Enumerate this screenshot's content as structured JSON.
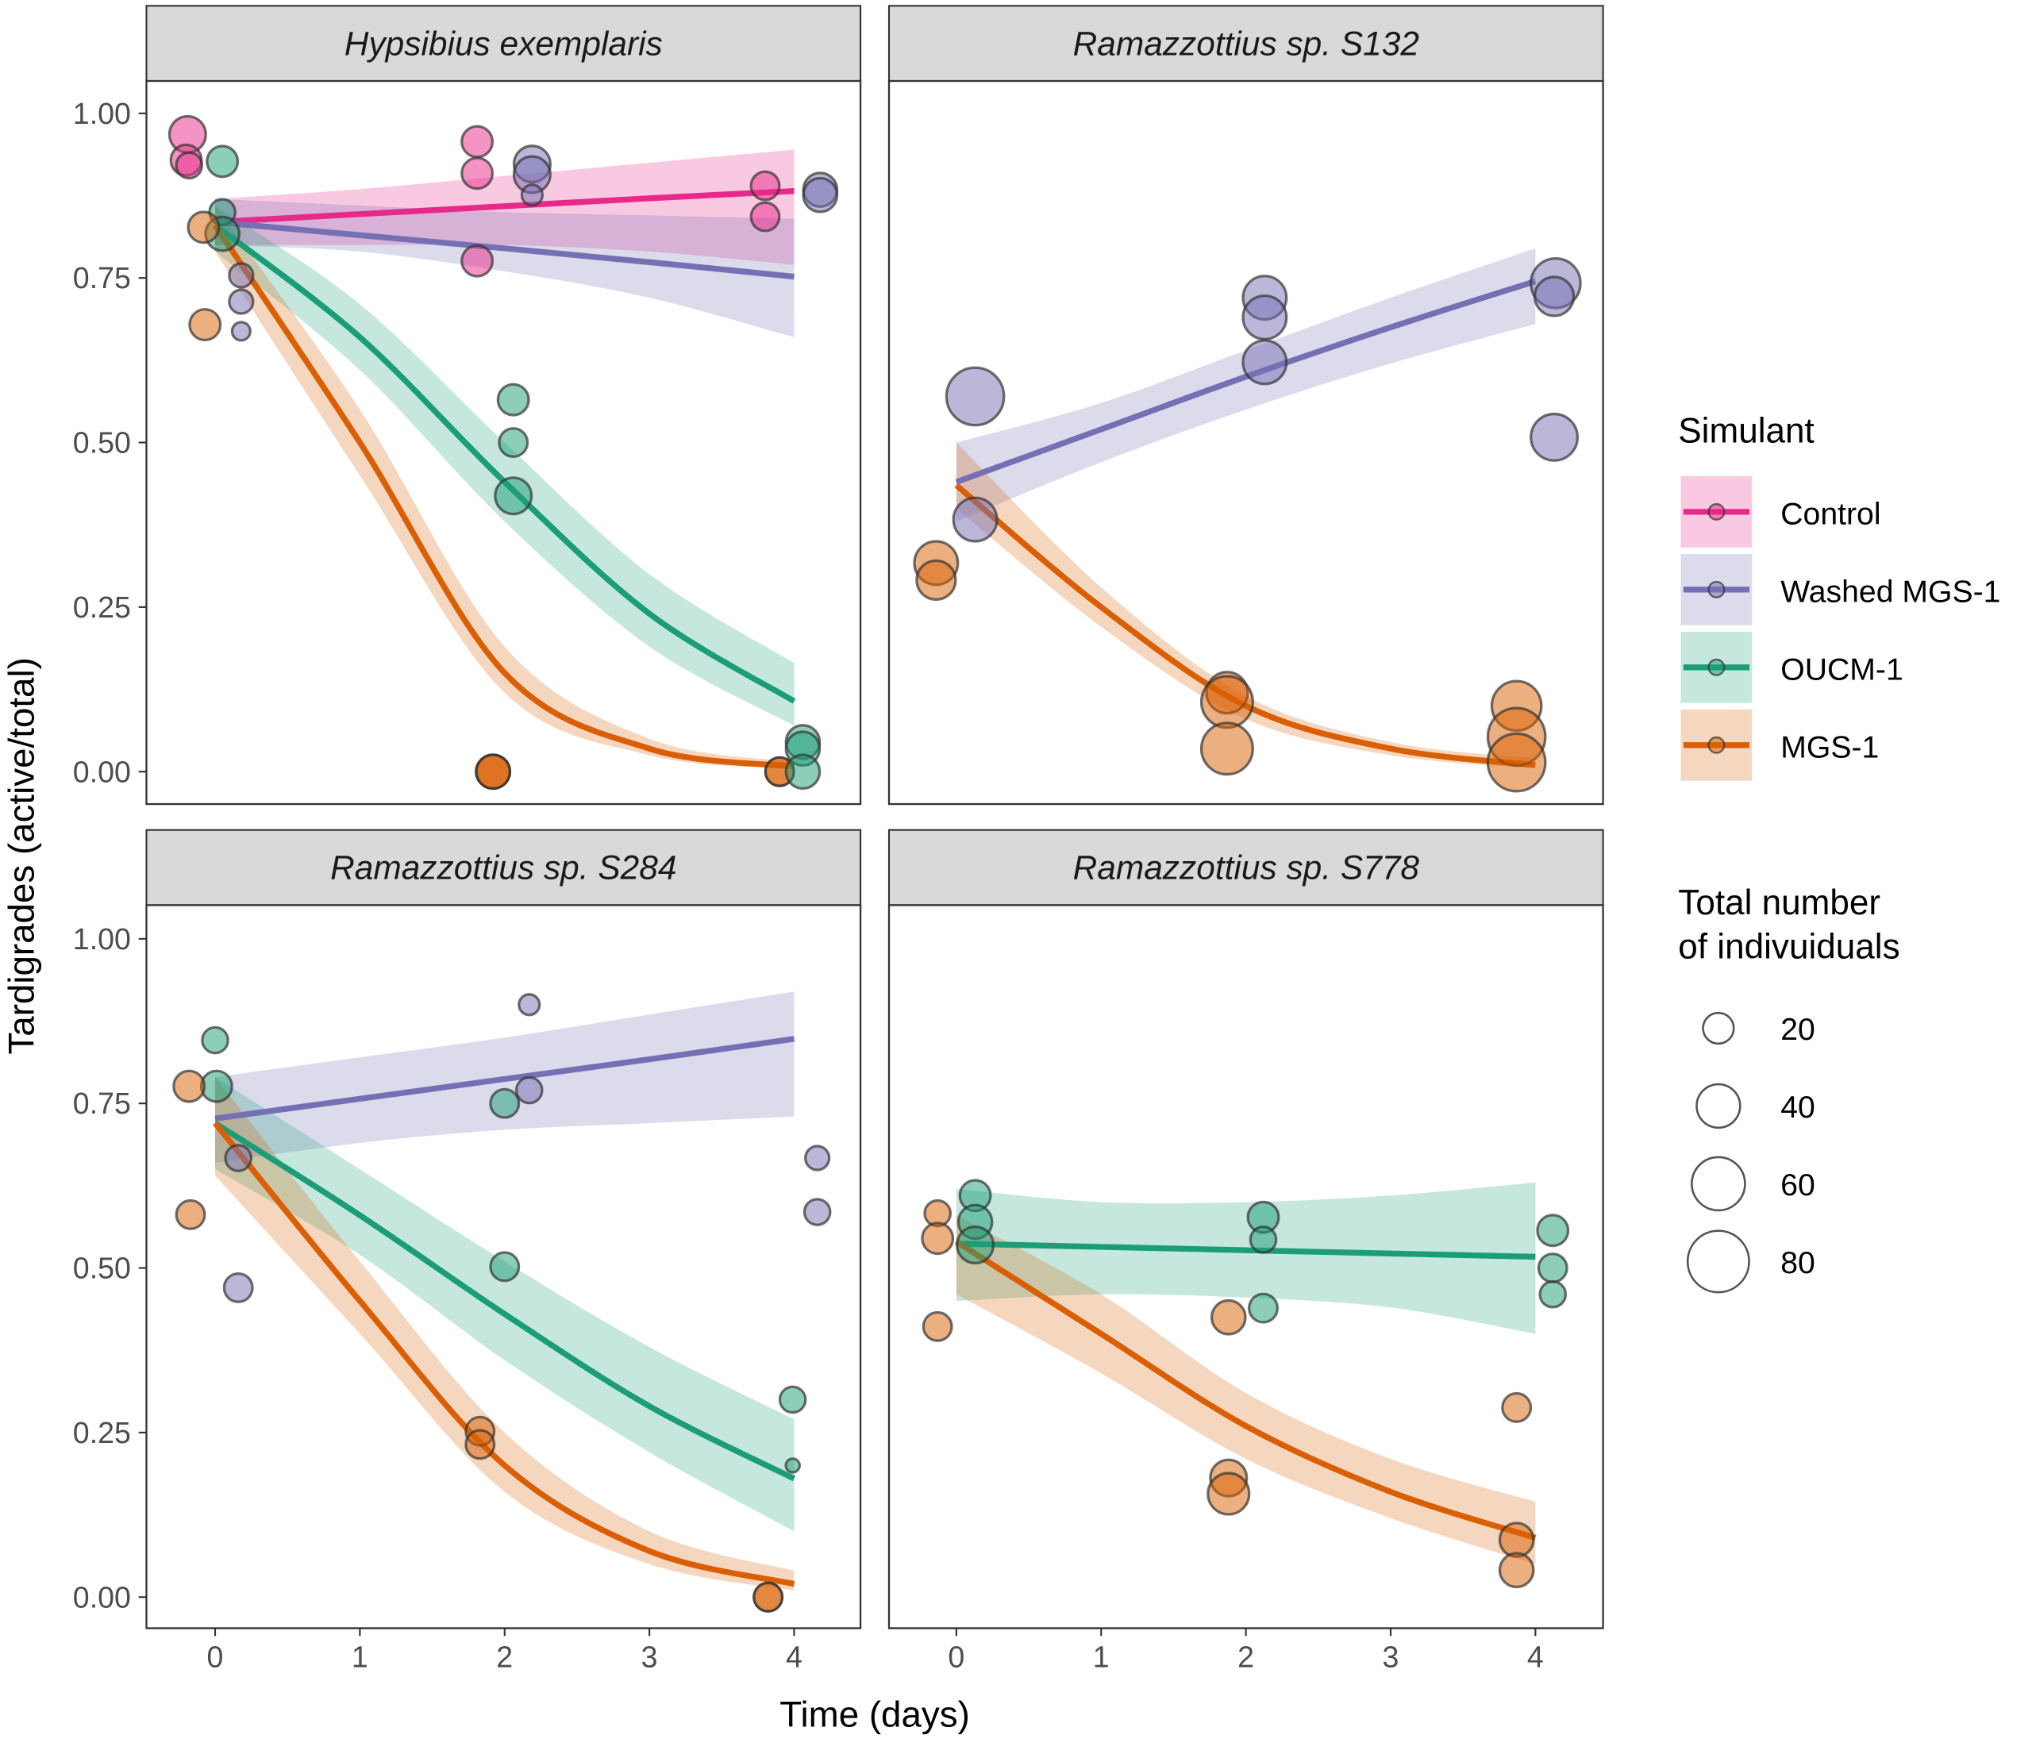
{
  "chart_data": {
    "type": "scatter",
    "xlabel": "Time (days)",
    "ylabel": "Tardigrades (active/total)",
    "xlim": [
      -0.45,
      4.5
    ],
    "ylim": [
      -0.07,
      1.05
    ],
    "x_ticks": [
      0,
      1,
      2,
      3,
      4
    ],
    "x_tick_labels": [
      "0",
      "1",
      "2",
      "3",
      "4"
    ],
    "y_ticks": [
      0,
      0.25,
      0.5,
      0.75,
      1.0
    ],
    "y_tick_labels": [
      "0.00",
      "0.25",
      "0.50",
      "0.75",
      "1.00"
    ],
    "grid": false,
    "legend": {
      "placement": "right",
      "color_title": "Simulant",
      "size_title_lines": [
        "Total number",
        "of indivuiduals"
      ],
      "size_breaks": [
        20,
        40,
        60,
        80
      ],
      "size_labels": [
        "20",
        "40",
        "60",
        "80"
      ]
    },
    "series_styles": [
      {
        "name": "Control",
        "color": "#E7298A"
      },
      {
        "name": "Washed MGS-1",
        "color": "#7570B3"
      },
      {
        "name": "OUCM-1",
        "color": "#1B9E77"
      },
      {
        "name": "MGS-1",
        "color": "#D95F02"
      }
    ],
    "fit_x": [
      0,
      1,
      2,
      3,
      4
    ],
    "panels": [
      {
        "title": "Hypsibius exemplaris",
        "fits": [
          {
            "series": "Control",
            "fit": [
              0.835,
              0.847,
              0.859,
              0.871,
              0.882
            ],
            "lower": [
              0.8,
              0.8,
              0.8,
              0.79,
              0.77
            ],
            "upper": [
              0.87,
              0.885,
              0.905,
              0.925,
              0.945
            ]
          },
          {
            "series": "Washed MGS-1",
            "fit": [
              0.835,
              0.815,
              0.795,
              0.774,
              0.752
            ],
            "lower": [
              0.8,
              0.79,
              0.76,
              0.72,
              0.66
            ],
            "upper": [
              0.87,
              0.86,
              0.85,
              0.845,
              0.84
            ]
          },
          {
            "series": "OUCM-1",
            "fit": [
              0.83,
              0.66,
              0.44,
              0.24,
              0.107
            ],
            "lower": [
              0.79,
              0.61,
              0.38,
              0.19,
              0.07
            ],
            "upper": [
              0.86,
              0.71,
              0.5,
              0.3,
              0.165
            ]
          },
          {
            "series": "MGS-1",
            "fit": [
              0.83,
              0.5,
              0.15,
              0.035,
              0.008
            ],
            "lower": [
              0.79,
              0.45,
              0.12,
              0.025,
              0.004
            ],
            "upper": [
              0.86,
              0.55,
              0.19,
              0.05,
              0.015
            ]
          }
        ],
        "points": [
          {
            "series": "Control",
            "x": -0.19,
            "y": 0.968,
            "n": 28
          },
          {
            "series": "Control",
            "x": -0.2,
            "y": 0.929,
            "n": 20
          },
          {
            "series": "Control",
            "x": -0.18,
            "y": 0.921,
            "n": 14
          },
          {
            "series": "Control",
            "x": 1.81,
            "y": 0.957,
            "n": 20
          },
          {
            "series": "Control",
            "x": 1.81,
            "y": 0.909,
            "n": 20
          },
          {
            "series": "Control",
            "x": 1.81,
            "y": 0.776,
            "n": 20
          },
          {
            "series": "Control",
            "x": 3.8,
            "y": 0.89,
            "n": 17
          },
          {
            "series": "Control",
            "x": 3.8,
            "y": 0.843,
            "n": 17
          },
          {
            "series": "Washed MGS-1",
            "x": 2.19,
            "y": 0.923,
            "n": 28
          },
          {
            "series": "Washed MGS-1",
            "x": 2.19,
            "y": 0.907,
            "n": 28
          },
          {
            "series": "Washed MGS-1",
            "x": 2.19,
            "y": 0.876,
            "n": 9
          },
          {
            "series": "Washed MGS-1",
            "x": 4.18,
            "y": 0.884,
            "n": 24
          },
          {
            "series": "Washed MGS-1",
            "x": 4.18,
            "y": 0.876,
            "n": 24
          },
          {
            "series": "Washed MGS-1",
            "x": 0.18,
            "y": 0.754,
            "n": 12
          },
          {
            "series": "Washed MGS-1",
            "x": 0.18,
            "y": 0.714,
            "n": 12
          },
          {
            "series": "Washed MGS-1",
            "x": 0.18,
            "y": 0.669,
            "n": 7
          },
          {
            "series": "OUCM-1",
            "x": 0.05,
            "y": 0.927,
            "n": 20
          },
          {
            "series": "OUCM-1",
            "x": 0.05,
            "y": 0.85,
            "n": 14
          },
          {
            "series": "OUCM-1",
            "x": 0.05,
            "y": 0.817,
            "n": 24
          },
          {
            "series": "OUCM-1",
            "x": 2.06,
            "y": 0.565,
            "n": 20
          },
          {
            "series": "OUCM-1",
            "x": 2.06,
            "y": 0.5,
            "n": 17
          },
          {
            "series": "OUCM-1",
            "x": 2.06,
            "y": 0.419,
            "n": 28
          },
          {
            "series": "MGS-1",
            "x": -0.08,
            "y": 0.827,
            "n": 20
          },
          {
            "series": "MGS-1",
            "x": -0.07,
            "y": 0.679,
            "n": 20
          },
          {
            "series": "MGS-1",
            "x": 1.92,
            "y": 0.0,
            "n": 24
          },
          {
            "series": "MGS-1",
            "x": 1.92,
            "y": 0.0,
            "n": 24
          },
          {
            "series": "MGS-1",
            "x": 1.92,
            "y": 0.0,
            "n": 24
          },
          {
            "series": "MGS-1",
            "x": 3.9,
            "y": 0.0,
            "n": 17
          },
          {
            "series": "MGS-1",
            "x": 3.9,
            "y": 0.0,
            "n": 17
          },
          {
            "series": "OUCM-1",
            "x": 4.06,
            "y": 0.045,
            "n": 24
          },
          {
            "series": "OUCM-1",
            "x": 4.06,
            "y": 0.035,
            "n": 24
          },
          {
            "series": "OUCM-1",
            "x": 4.06,
            "y": 0.0,
            "n": 24
          }
        ]
      },
      {
        "title": "Ramazzottius sp. S132",
        "fits": [
          {
            "series": "Washed MGS-1",
            "fit": [
              0.44,
              0.52,
              0.6,
              0.675,
              0.745
            ],
            "lower": [
              0.38,
              0.47,
              0.55,
              0.62,
              0.68
            ],
            "upper": [
              0.5,
              0.56,
              0.64,
              0.72,
              0.795
            ]
          },
          {
            "series": "MGS-1",
            "fit": [
              0.435,
              0.25,
              0.1,
              0.035,
              0.01
            ],
            "lower": [
              0.4,
              0.22,
              0.08,
              0.025,
              0.005
            ],
            "upper": [
              0.5,
              0.28,
              0.115,
              0.045,
              0.02
            ]
          }
        ],
        "points": [
          {
            "series": "Washed MGS-1",
            "x": 0.13,
            "y": 0.57,
            "n": 70
          },
          {
            "series": "Washed MGS-1",
            "x": 0.13,
            "y": 0.383,
            "n": 40
          },
          {
            "series": "Washed MGS-1",
            "x": 2.13,
            "y": 0.72,
            "n": 40
          },
          {
            "series": "Washed MGS-1",
            "x": 2.13,
            "y": 0.69,
            "n": 40
          },
          {
            "series": "Washed MGS-1",
            "x": 2.13,
            "y": 0.622,
            "n": 40
          },
          {
            "series": "Washed MGS-1",
            "x": 4.14,
            "y": 0.742,
            "n": 52
          },
          {
            "series": "Washed MGS-1",
            "x": 4.13,
            "y": 0.722,
            "n": 32
          },
          {
            "series": "Washed MGS-1",
            "x": 4.13,
            "y": 0.508,
            "n": 46
          },
          {
            "series": "MGS-1",
            "x": -0.14,
            "y": 0.317,
            "n": 40
          },
          {
            "series": "MGS-1",
            "x": -0.14,
            "y": 0.291,
            "n": 32
          },
          {
            "series": "MGS-1",
            "x": 1.87,
            "y": 0.12,
            "n": 36
          },
          {
            "series": "MGS-1",
            "x": 1.87,
            "y": 0.106,
            "n": 56
          },
          {
            "series": "MGS-1",
            "x": 1.87,
            "y": 0.035,
            "n": 56
          },
          {
            "series": "MGS-1",
            "x": 3.87,
            "y": 0.1,
            "n": 52
          },
          {
            "series": "MGS-1",
            "x": 3.87,
            "y": 0.053,
            "n": 70
          },
          {
            "series": "MGS-1",
            "x": 3.87,
            "y": 0.014,
            "n": 70
          }
        ]
      },
      {
        "title": "Ramazzottius sp. S284",
        "fits": [
          {
            "series": "Washed MGS-1",
            "fit": [
              0.727,
              0.757,
              0.787,
              0.817,
              0.848
            ],
            "lower": [
              0.66,
              0.69,
              0.71,
              0.72,
              0.73
            ],
            "upper": [
              0.79,
              0.82,
              0.85,
              0.885,
              0.92
            ]
          },
          {
            "series": "OUCM-1",
            "fit": [
              0.72,
              0.58,
              0.43,
              0.29,
              0.18
            ],
            "lower": [
              0.65,
              0.52,
              0.36,
              0.22,
              0.1
            ],
            "upper": [
              0.79,
              0.65,
              0.51,
              0.38,
              0.27
            ]
          },
          {
            "series": "MGS-1",
            "fit": [
              0.72,
              0.45,
              0.2,
              0.07,
              0.02
            ],
            "lower": [
              0.64,
              0.4,
              0.16,
              0.05,
              0.01
            ],
            "upper": [
              0.79,
              0.51,
              0.25,
              0.1,
              0.04
            ]
          }
        ],
        "points": [
          {
            "series": "Washed MGS-1",
            "x": 2.17,
            "y": 0.9,
            "n": 9
          },
          {
            "series": "Washed MGS-1",
            "x": 2.17,
            "y": 0.77,
            "n": 14
          },
          {
            "series": "Washed MGS-1",
            "x": 0.16,
            "y": 0.667,
            "n": 14
          },
          {
            "series": "Washed MGS-1",
            "x": 0.16,
            "y": 0.47,
            "n": 17
          },
          {
            "series": "Washed MGS-1",
            "x": 4.16,
            "y": 0.667,
            "n": 12
          },
          {
            "series": "Washed MGS-1",
            "x": 4.16,
            "y": 0.585,
            "n": 14
          },
          {
            "series": "OUCM-1",
            "x": 0.0,
            "y": 0.846,
            "n": 14
          },
          {
            "series": "OUCM-1",
            "x": 0.01,
            "y": 0.776,
            "n": 20
          },
          {
            "series": "OUCM-1",
            "x": 2.0,
            "y": 0.75,
            "n": 17
          },
          {
            "series": "OUCM-1",
            "x": 2.0,
            "y": 0.502,
            "n": 17
          },
          {
            "series": "OUCM-1",
            "x": 3.99,
            "y": 0.3,
            "n": 14
          },
          {
            "series": "OUCM-1",
            "x": 3.99,
            "y": 0.2,
            "n": 4
          },
          {
            "series": "MGS-1",
            "x": -0.18,
            "y": 0.776,
            "n": 20
          },
          {
            "series": "MGS-1",
            "x": -0.17,
            "y": 0.581,
            "n": 17
          },
          {
            "series": "MGS-1",
            "x": 1.83,
            "y": 0.252,
            "n": 17
          },
          {
            "series": "MGS-1",
            "x": 1.83,
            "y": 0.232,
            "n": 17
          },
          {
            "series": "MGS-1",
            "x": 3.82,
            "y": 0.0,
            "n": 17
          },
          {
            "series": "MGS-1",
            "x": 3.82,
            "y": 0.0,
            "n": 17
          }
        ]
      },
      {
        "title": "Ramazzottius sp. S778",
        "fits": [
          {
            "series": "OUCM-1",
            "fit": [
              0.537,
              0.532,
              0.527,
              0.522,
              0.517
            ],
            "lower": [
              0.45,
              0.46,
              0.455,
              0.44,
              0.4
            ],
            "upper": [
              0.62,
              0.6,
              0.6,
              0.61,
              0.63
            ]
          },
          {
            "series": "MGS-1",
            "fit": [
              0.54,
              0.4,
              0.26,
              0.16,
              0.09
            ],
            "lower": [
              0.46,
              0.34,
              0.21,
              0.12,
              0.05
            ],
            "upper": [
              0.58,
              0.46,
              0.31,
              0.21,
              0.145
            ]
          }
        ],
        "points": [
          {
            "series": "OUCM-1",
            "x": 0.13,
            "y": 0.61,
            "n": 20
          },
          {
            "series": "OUCM-1",
            "x": 0.13,
            "y": 0.57,
            "n": 24
          },
          {
            "series": "OUCM-1",
            "x": 0.13,
            "y": 0.535,
            "n": 28
          },
          {
            "series": "OUCM-1",
            "x": 2.12,
            "y": 0.577,
            "n": 20
          },
          {
            "series": "OUCM-1",
            "x": 2.12,
            "y": 0.543,
            "n": 14
          },
          {
            "series": "OUCM-1",
            "x": 2.12,
            "y": 0.439,
            "n": 17
          },
          {
            "series": "OUCM-1",
            "x": 4.12,
            "y": 0.557,
            "n": 20
          },
          {
            "series": "OUCM-1",
            "x": 4.12,
            "y": 0.5,
            "n": 17
          },
          {
            "series": "OUCM-1",
            "x": 4.12,
            "y": 0.46,
            "n": 14
          },
          {
            "series": "MGS-1",
            "x": -0.13,
            "y": 0.583,
            "n": 14
          },
          {
            "series": "MGS-1",
            "x": -0.13,
            "y": 0.545,
            "n": 20
          },
          {
            "series": "MGS-1",
            "x": -0.13,
            "y": 0.411,
            "n": 17
          },
          {
            "series": "MGS-1",
            "x": 1.88,
            "y": 0.425,
            "n": 24
          },
          {
            "series": "MGS-1",
            "x": 1.88,
            "y": 0.181,
            "n": 28
          },
          {
            "series": "MGS-1",
            "x": 1.88,
            "y": 0.157,
            "n": 36
          },
          {
            "series": "MGS-1",
            "x": 3.87,
            "y": 0.288,
            "n": 17
          },
          {
            "series": "MGS-1",
            "x": 3.87,
            "y": 0.087,
            "n": 24
          },
          {
            "series": "MGS-1",
            "x": 3.87,
            "y": 0.041,
            "n": 24
          }
        ]
      }
    ]
  }
}
